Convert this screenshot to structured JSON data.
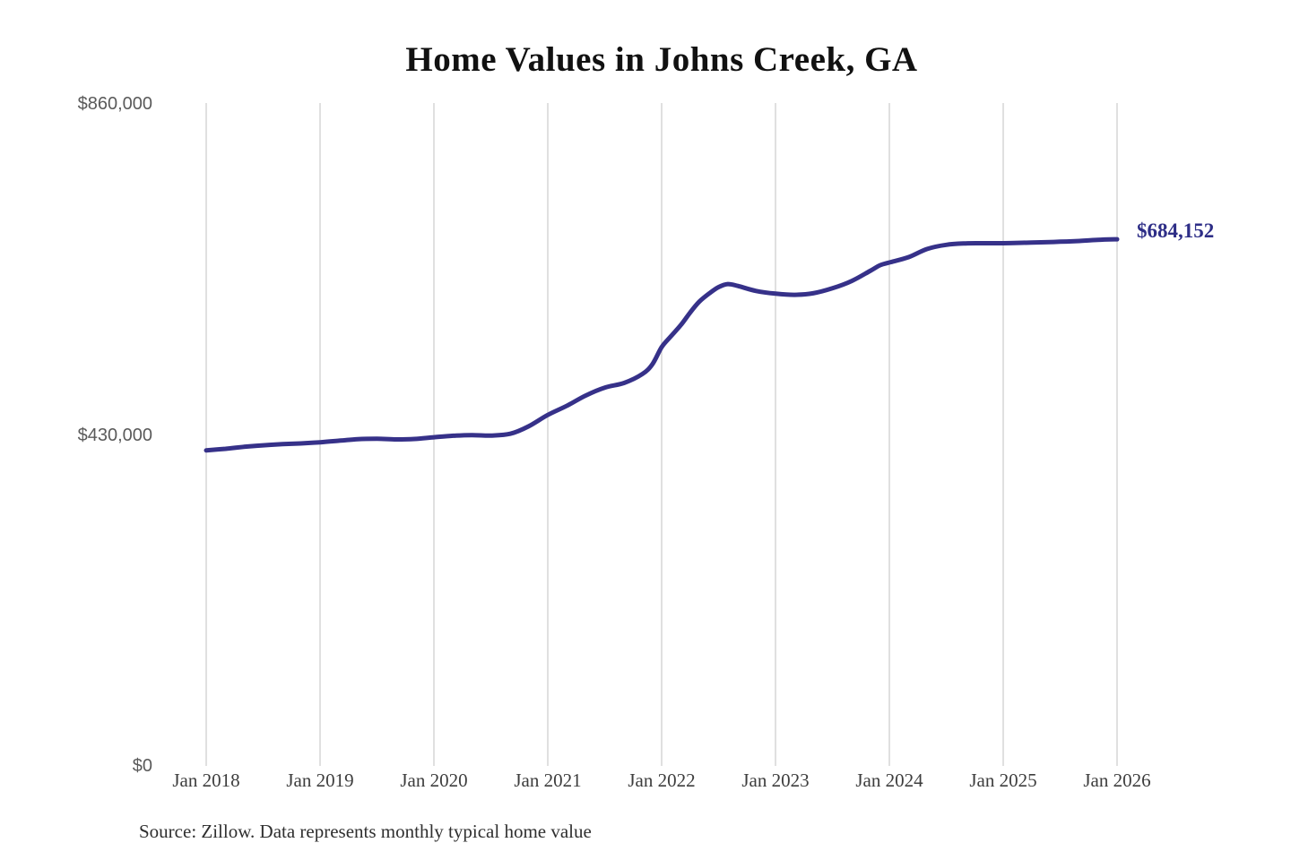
{
  "chart": {
    "title": "Home Values in Johns Creek, GA",
    "end_label": "$684,152",
    "y_ticks": [
      {
        "label": "$860,000",
        "value": 860000
      },
      {
        "label": "$430,000",
        "value": 430000
      },
      {
        "label": "$0",
        "value": 0
      }
    ],
    "x_ticks": [
      "Jan 2018",
      "Jan 2019",
      "Jan 2020",
      "Jan 2021",
      "Jan 2022",
      "Jan 2023",
      "Jan 2024",
      "Jan 2025",
      "Jan 2026"
    ],
    "colors": {
      "line": "#363189",
      "end_label": "#2e2e87",
      "grid": "#cccccc",
      "y_tick_text": "#5a5a5a",
      "x_tick_text": "#3d3d3d",
      "title_text": "#111111",
      "source_text": "#2f2f2f"
    }
  },
  "chart_data": {
    "type": "line",
    "title": "Home Values in Johns Creek, GA",
    "series_name": "Monthly typical home value (USD)",
    "x_unit": "decimal_year",
    "xlim": [
      2018.0,
      2026.0
    ],
    "ylim": [
      0,
      860000
    ],
    "grid": "vertical-only",
    "legend": "none",
    "final_value": 684152,
    "points": [
      [
        2018.0,
        410000
      ],
      [
        2018.17,
        412000
      ],
      [
        2018.33,
        414500
      ],
      [
        2018.5,
        416500
      ],
      [
        2018.67,
        418000
      ],
      [
        2018.83,
        419000
      ],
      [
        2019.0,
        420500
      ],
      [
        2019.17,
        422500
      ],
      [
        2019.33,
        424500
      ],
      [
        2019.5,
        425000
      ],
      [
        2019.67,
        424200
      ],
      [
        2019.83,
        424800
      ],
      [
        2020.0,
        427000
      ],
      [
        2020.17,
        429000
      ],
      [
        2020.33,
        429800
      ],
      [
        2020.5,
        429200
      ],
      [
        2020.67,
        431500
      ],
      [
        2020.83,
        441000
      ],
      [
        2021.0,
        456000
      ],
      [
        2021.17,
        468000
      ],
      [
        2021.33,
        481000
      ],
      [
        2021.5,
        491500
      ],
      [
        2021.67,
        497500
      ],
      [
        2021.83,
        509000
      ],
      [
        2021.92,
        522000
      ],
      [
        2022.0,
        544000
      ],
      [
        2022.08,
        558000
      ],
      [
        2022.17,
        573000
      ],
      [
        2022.25,
        589000
      ],
      [
        2022.33,
        603000
      ],
      [
        2022.42,
        614000
      ],
      [
        2022.5,
        622000
      ],
      [
        2022.58,
        626000
      ],
      [
        2022.67,
        623500
      ],
      [
        2022.83,
        617000
      ],
      [
        2023.0,
        613500
      ],
      [
        2023.17,
        612000
      ],
      [
        2023.33,
        614000
      ],
      [
        2023.5,
        620500
      ],
      [
        2023.67,
        630000
      ],
      [
        2023.83,
        643000
      ],
      [
        2023.92,
        650500
      ],
      [
        2024.0,
        654000
      ],
      [
        2024.17,
        661000
      ],
      [
        2024.33,
        671500
      ],
      [
        2024.5,
        677000
      ],
      [
        2024.67,
        678800
      ],
      [
        2024.83,
        679000
      ],
      [
        2025.0,
        679000
      ],
      [
        2025.17,
        679600
      ],
      [
        2025.33,
        680200
      ],
      [
        2025.5,
        681000
      ],
      [
        2025.67,
        682000
      ],
      [
        2025.83,
        683400
      ],
      [
        2026.0,
        684152
      ]
    ]
  },
  "footer": {
    "source": "Source: Zillow. Data represents monthly typical home value"
  }
}
